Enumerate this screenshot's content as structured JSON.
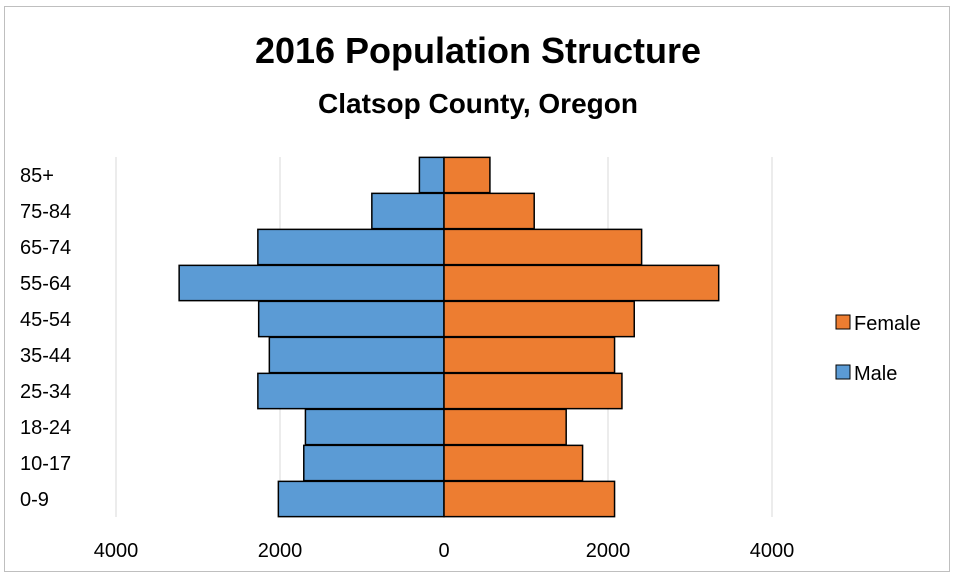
{
  "chart_data": {
    "type": "bar",
    "orientation": "horizontal",
    "title": "2016 Population Structure",
    "subtitle": "Clatsop County, Oregon",
    "categories": [
      "0-9",
      "10-17",
      "18-24",
      "25-34",
      "35-44",
      "45-54",
      "55-64",
      "65-74",
      "75-84",
      "85+"
    ],
    "series": [
      {
        "name": "Male",
        "color": "#5b9bd5",
        "values": [
          2020,
          1710,
          1690,
          2270,
          2130,
          2260,
          3230,
          2270,
          880,
          300
        ]
      },
      {
        "name": "Female",
        "color": "#ed7d31",
        "values": [
          2080,
          1690,
          1490,
          2170,
          2080,
          2320,
          3350,
          2410,
          1100,
          560
        ]
      }
    ],
    "x_ticks": [
      "4000",
      "2000",
      "0",
      "2000",
      "4000"
    ],
    "xlim": [
      -4000,
      4000
    ],
    "grid": "vertical",
    "legend": "right"
  }
}
